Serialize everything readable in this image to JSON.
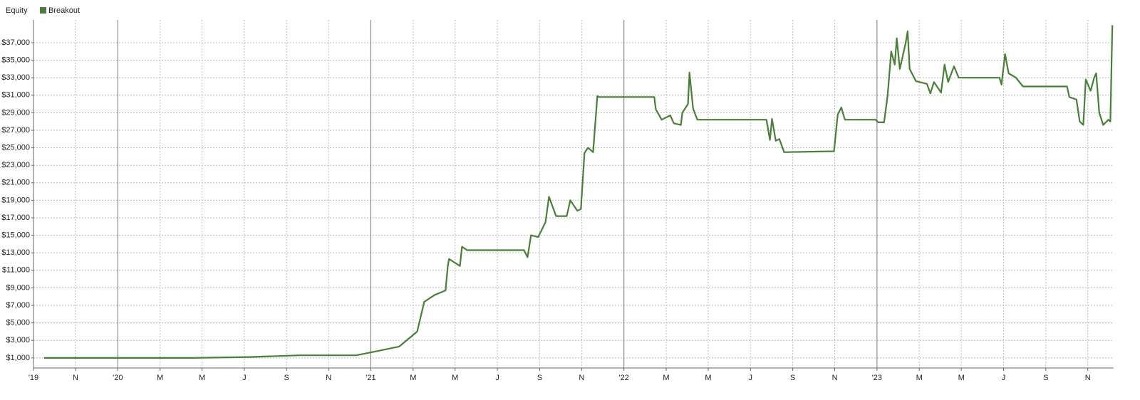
{
  "chart_data": {
    "type": "line",
    "title": "Equity",
    "series": [
      {
        "name": "Breakout",
        "color": "#4a7f3a",
        "x": [
          2019.709,
          2020.295,
          2020.52,
          2020.718,
          2020.943,
          2021.013,
          2021.112,
          2021.183,
          2021.211,
          2021.253,
          2021.295,
          2021.304,
          2021.309,
          2021.352,
          2021.36,
          2021.38,
          2021.605,
          2021.619,
          2021.633,
          2021.661,
          2021.69,
          2021.704,
          2021.732,
          2021.774,
          2021.788,
          2021.816,
          2021.83,
          2021.844,
          2021.858,
          2021.878,
          2021.895,
          2021.901,
          2022.12,
          2022.126,
          2022.149,
          2022.183,
          2022.197,
          2022.225,
          2022.231,
          2022.253,
          2022.259,
          2022.273,
          2022.29,
          2022.563,
          2022.577,
          2022.585,
          2022.6,
          2022.614,
          2022.633,
          2022.83,
          2022.845,
          2022.859,
          2022.873,
          2022.994,
          2023.005,
          2023.028,
          2023.042,
          2023.056,
          2023.07,
          2023.078,
          2023.09,
          2023.112,
          2023.121,
          2023.129,
          2023.154,
          2023.197,
          2023.211,
          2023.225,
          2023.253,
          2023.267,
          2023.281,
          2023.304,
          2023.323,
          2023.484,
          2023.492,
          2023.506,
          2023.52,
          2023.549,
          2023.577,
          2023.751,
          2023.76,
          2023.788,
          2023.801,
          2023.815,
          2023.825,
          2023.844,
          2023.858,
          2023.866,
          2023.878,
          2023.894,
          2023.914,
          2023.922,
          2023.93
        ],
        "values": [
          1000,
          1000,
          1100,
          1300,
          1300,
          1700,
          2300,
          4000,
          7400,
          8200,
          8700,
          11500,
          12300,
          11500,
          13700,
          13300,
          13300,
          12500,
          15000,
          14800,
          16500,
          19400,
          17200,
          17200,
          19000,
          17800,
          18000,
          24400,
          25000,
          24500,
          30900,
          30800,
          30800,
          29400,
          28200,
          28700,
          27800,
          27600,
          29000,
          30000,
          33600,
          29500,
          28200,
          28200,
          25900,
          28300,
          25800,
          26000,
          24500,
          24600,
          28800,
          29600,
          28200,
          28200,
          27900,
          27900,
          31000,
          36000,
          34500,
          37500,
          34000,
          36800,
          38300,
          34000,
          32600,
          32300,
          31200,
          32500,
          31300,
          34500,
          32500,
          34300,
          33000,
          33000,
          32200,
          35700,
          33500,
          33000,
          32000,
          32000,
          30800,
          30500,
          28000,
          27600,
          32800,
          31500,
          33000,
          33500,
          29000,
          27600,
          28200,
          28000,
          39000
        ]
      }
    ],
    "xlim": [
      2019.667,
      2023.935
    ],
    "xticks": [
      {
        "value": 2019.667,
        "label": "'19"
      },
      {
        "value": 2019.833,
        "label": "N"
      },
      {
        "value": 2020,
        "label": "'20"
      },
      {
        "value": 2020.167,
        "label": "M"
      },
      {
        "value": 2020.333,
        "label": "M"
      },
      {
        "value": 2020.5,
        "label": "J"
      },
      {
        "value": 2020.667,
        "label": "S"
      },
      {
        "value": 2020.833,
        "label": "N"
      },
      {
        "value": 2021,
        "label": "'21"
      },
      {
        "value": 2021.167,
        "label": "M"
      },
      {
        "value": 2021.333,
        "label": "M"
      },
      {
        "value": 2021.5,
        "label": "J"
      },
      {
        "value": 2021.667,
        "label": "S"
      },
      {
        "value": 2021.833,
        "label": "N"
      },
      {
        "value": 2022,
        "label": "'22"
      },
      {
        "value": 2022.167,
        "label": "M"
      },
      {
        "value": 2022.333,
        "label": "M"
      },
      {
        "value": 2022.5,
        "label": "J"
      },
      {
        "value": 2022.667,
        "label": "S"
      },
      {
        "value": 2022.833,
        "label": "N"
      },
      {
        "value": 2023,
        "label": "'23"
      },
      {
        "value": 2023.167,
        "label": "M"
      },
      {
        "value": 2023.333,
        "label": "M"
      },
      {
        "value": 2023.5,
        "label": "J"
      },
      {
        "value": 2023.667,
        "label": "S"
      },
      {
        "value": 2023.833,
        "label": "N"
      }
    ],
    "ylim": [
      -150,
      39600
    ],
    "yticks": [
      {
        "value": 1000,
        "label": "$1,000"
      },
      {
        "value": 3000,
        "label": "$3,000"
      },
      {
        "value": 5000,
        "label": "$5,000"
      },
      {
        "value": 7000,
        "label": "$7,000"
      },
      {
        "value": 9000,
        "label": "$9,000"
      },
      {
        "value": 11000,
        "label": "$11,000"
      },
      {
        "value": 13000,
        "label": "$13,000"
      },
      {
        "value": 15000,
        "label": "$15,000"
      },
      {
        "value": 17000,
        "label": "$17,000"
      },
      {
        "value": 19000,
        "label": "$19,000"
      },
      {
        "value": 21000,
        "label": "$21,000"
      },
      {
        "value": 23000,
        "label": "$23,000"
      },
      {
        "value": 25000,
        "label": "$25,000"
      },
      {
        "value": 27000,
        "label": "$27,000"
      },
      {
        "value": 29000,
        "label": "$29,000"
      },
      {
        "value": 31000,
        "label": "$31,000"
      },
      {
        "value": 33000,
        "label": "$33,000"
      },
      {
        "value": 35000,
        "label": "$35,000"
      },
      {
        "value": 37000,
        "label": "$37,000"
      }
    ],
    "grid": true
  }
}
